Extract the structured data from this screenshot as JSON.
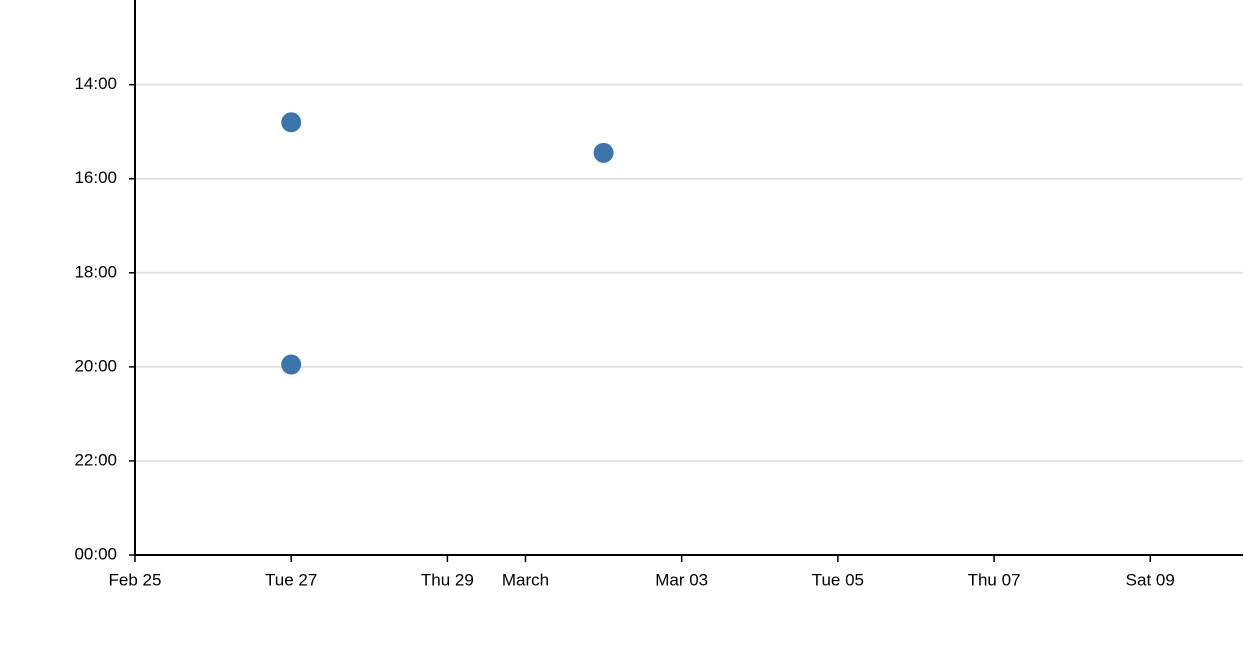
{
  "chart_data": {
    "type": "scatter",
    "x": [
      "02-27",
      "02-27",
      "03-02"
    ],
    "series": [
      {
        "color": "#3b75ad",
        "values": [
          14.8,
          19.95,
          15.45
        ]
      }
    ],
    "xlim": [
      "02-25",
      "03-10T04:30"
    ],
    "xticks": [
      {
        "value": "02-25",
        "label": "Feb 25"
      },
      {
        "value": "02-27",
        "label": "Tue 27"
      },
      {
        "value": "02-29",
        "label": "Thu 29"
      },
      {
        "value": "03-01",
        "label": "March"
      },
      {
        "value": "03-03",
        "label": "Mar 03"
      },
      {
        "value": "03-05",
        "label": "Tue 05"
      },
      {
        "value": "03-07",
        "label": "Thu 07"
      },
      {
        "value": "03-09",
        "label": "Sat 09"
      }
    ],
    "ylim": [
      24,
      12.2
    ],
    "yticks": [
      {
        "value": 14,
        "label": "14:00"
      },
      {
        "value": 16,
        "label": "16:00"
      },
      {
        "value": 18,
        "label": "18:00"
      },
      {
        "value": 20,
        "label": "20:00"
      },
      {
        "value": 22,
        "label": "22:00"
      },
      {
        "value": 24,
        "label": "00:00"
      }
    ],
    "grid": true
  }
}
